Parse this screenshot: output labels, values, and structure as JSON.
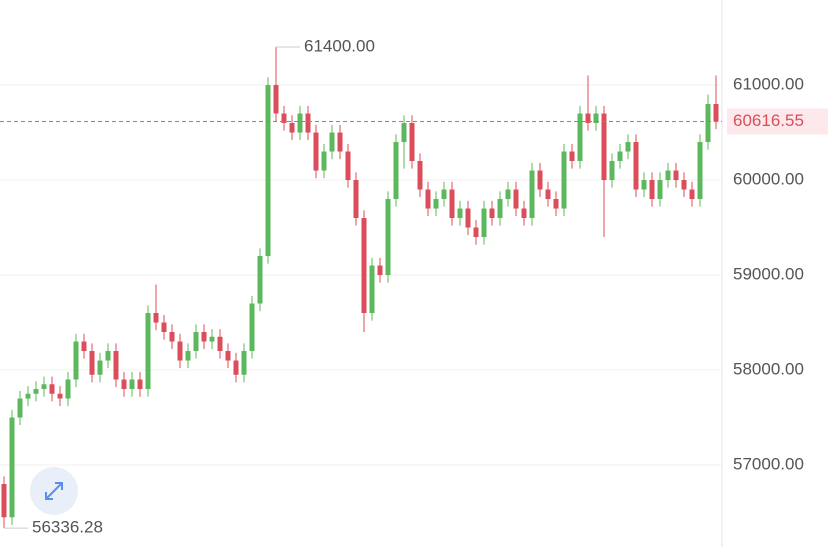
{
  "chart_data": {
    "type": "candlestick",
    "open": [
      56800,
      56450,
      57500,
      57700,
      57750,
      57800,
      57850,
      57750,
      57700,
      57900,
      58300,
      58200,
      57950,
      58100,
      58200,
      57900,
      57800,
      57900,
      57800,
      58600,
      58500,
      58400,
      58300,
      58100,
      58200,
      58400,
      58300,
      58350,
      58200,
      58100,
      57950,
      58200,
      58700,
      59200,
      61000,
      60700,
      60600,
      60500,
      60700,
      60500,
      60100,
      60300,
      60500,
      60300,
      60000,
      59600,
      58600,
      59100,
      59000,
      59800,
      60400,
      60600,
      60200,
      59900,
      59700,
      59800,
      59900,
      59600,
      59700,
      59500,
      59400,
      59700,
      59600,
      59800,
      59900,
      59700,
      59600,
      60100,
      59900,
      59800,
      59700,
      60300,
      60200,
      60700,
      60600,
      60700,
      60000,
      60200,
      60300,
      60400,
      59900,
      60000,
      59800,
      60000,
      60100,
      60000,
      59900,
      59800,
      60400,
      60800
    ],
    "high": [
      56880,
      57580,
      57780,
      57830,
      57880,
      57930,
      57930,
      57830,
      57980,
      58380,
      58380,
      58280,
      58180,
      58280,
      58280,
      57980,
      57980,
      57980,
      58680,
      58900,
      58580,
      58480,
      58380,
      58280,
      58480,
      58480,
      58430,
      58430,
      58280,
      58180,
      58280,
      58780,
      59280,
      61080,
      61400,
      60780,
      60680,
      60780,
      60780,
      60580,
      60380,
      60580,
      60580,
      60380,
      60080,
      59680,
      59180,
      59180,
      59880,
      60480,
      60680,
      60680,
      60280,
      59980,
      59880,
      59980,
      59980,
      59780,
      59780,
      59580,
      59780,
      59780,
      59880,
      59980,
      59980,
      59780,
      60180,
      60180,
      59980,
      59880,
      60380,
      60380,
      60780,
      61100,
      60780,
      60780,
      60280,
      60380,
      60480,
      60480,
      60080,
      60080,
      60080,
      60180,
      60180,
      60080,
      59980,
      60480,
      60900,
      61100
    ],
    "low": [
      56336.28,
      56370,
      57420,
      57620,
      57670,
      57720,
      57670,
      57620,
      57620,
      57820,
      58120,
      57870,
      57870,
      58020,
      57820,
      57720,
      57720,
      57720,
      57720,
      58420,
      58320,
      58220,
      58020,
      58020,
      58120,
      58220,
      58220,
      58120,
      58020,
      57870,
      57870,
      58120,
      58620,
      59120,
      60620,
      60520,
      60420,
      60420,
      60420,
      60020,
      60020,
      60220,
      60220,
      59920,
      59520,
      58400,
      58520,
      58920,
      58920,
      59720,
      60120,
      60120,
      59820,
      59620,
      59620,
      59720,
      59520,
      59520,
      59420,
      59320,
      59320,
      59520,
      59520,
      59720,
      59620,
      59520,
      59520,
      59820,
      59720,
      59620,
      59620,
      60120,
      60120,
      60520,
      60520,
      59400,
      59920,
      60120,
      60220,
      59820,
      59820,
      59720,
      59720,
      59920,
      59920,
      59820,
      59720,
      59720,
      60320,
      60536
    ],
    "close": [
      56450,
      57500,
      57700,
      57750,
      57800,
      57850,
      57750,
      57700,
      57900,
      58300,
      58200,
      57950,
      58100,
      58200,
      57900,
      57800,
      57900,
      57800,
      58600,
      58500,
      58400,
      58300,
      58100,
      58200,
      58400,
      58300,
      58350,
      58200,
      58100,
      57950,
      58200,
      58700,
      59200,
      61000,
      60700,
      60600,
      60500,
      60700,
      60500,
      60100,
      60300,
      60500,
      60300,
      60000,
      59600,
      58600,
      59100,
      59000,
      59800,
      60400,
      60600,
      60200,
      59900,
      59700,
      59800,
      59900,
      59600,
      59700,
      59500,
      59400,
      59700,
      59600,
      59800,
      59900,
      59700,
      59600,
      60100,
      59900,
      59800,
      59700,
      60300,
      60200,
      60700,
      60600,
      60700,
      60000,
      60200,
      60300,
      60400,
      59900,
      60000,
      59800,
      60000,
      60100,
      60000,
      59900,
      59800,
      60400,
      60800,
      60616.55
    ],
    "up_color": "#5cb85c",
    "down_color": "#dc4d5b",
    "ylim": [
      56137,
      61895
    ],
    "yticks": [
      {
        "value": 57000,
        "label": "57000.00"
      },
      {
        "value": 58000,
        "label": "58000.00"
      },
      {
        "value": 59000,
        "label": "59000.00"
      },
      {
        "value": 60000,
        "label": "60000.00"
      },
      {
        "value": 61000,
        "label": "61000.00"
      }
    ],
    "grid": true,
    "annotations": [
      {
        "value": 61400,
        "label": "61400.00"
      },
      {
        "value": 56336.28,
        "label": "56336.28"
      }
    ]
  }
}
